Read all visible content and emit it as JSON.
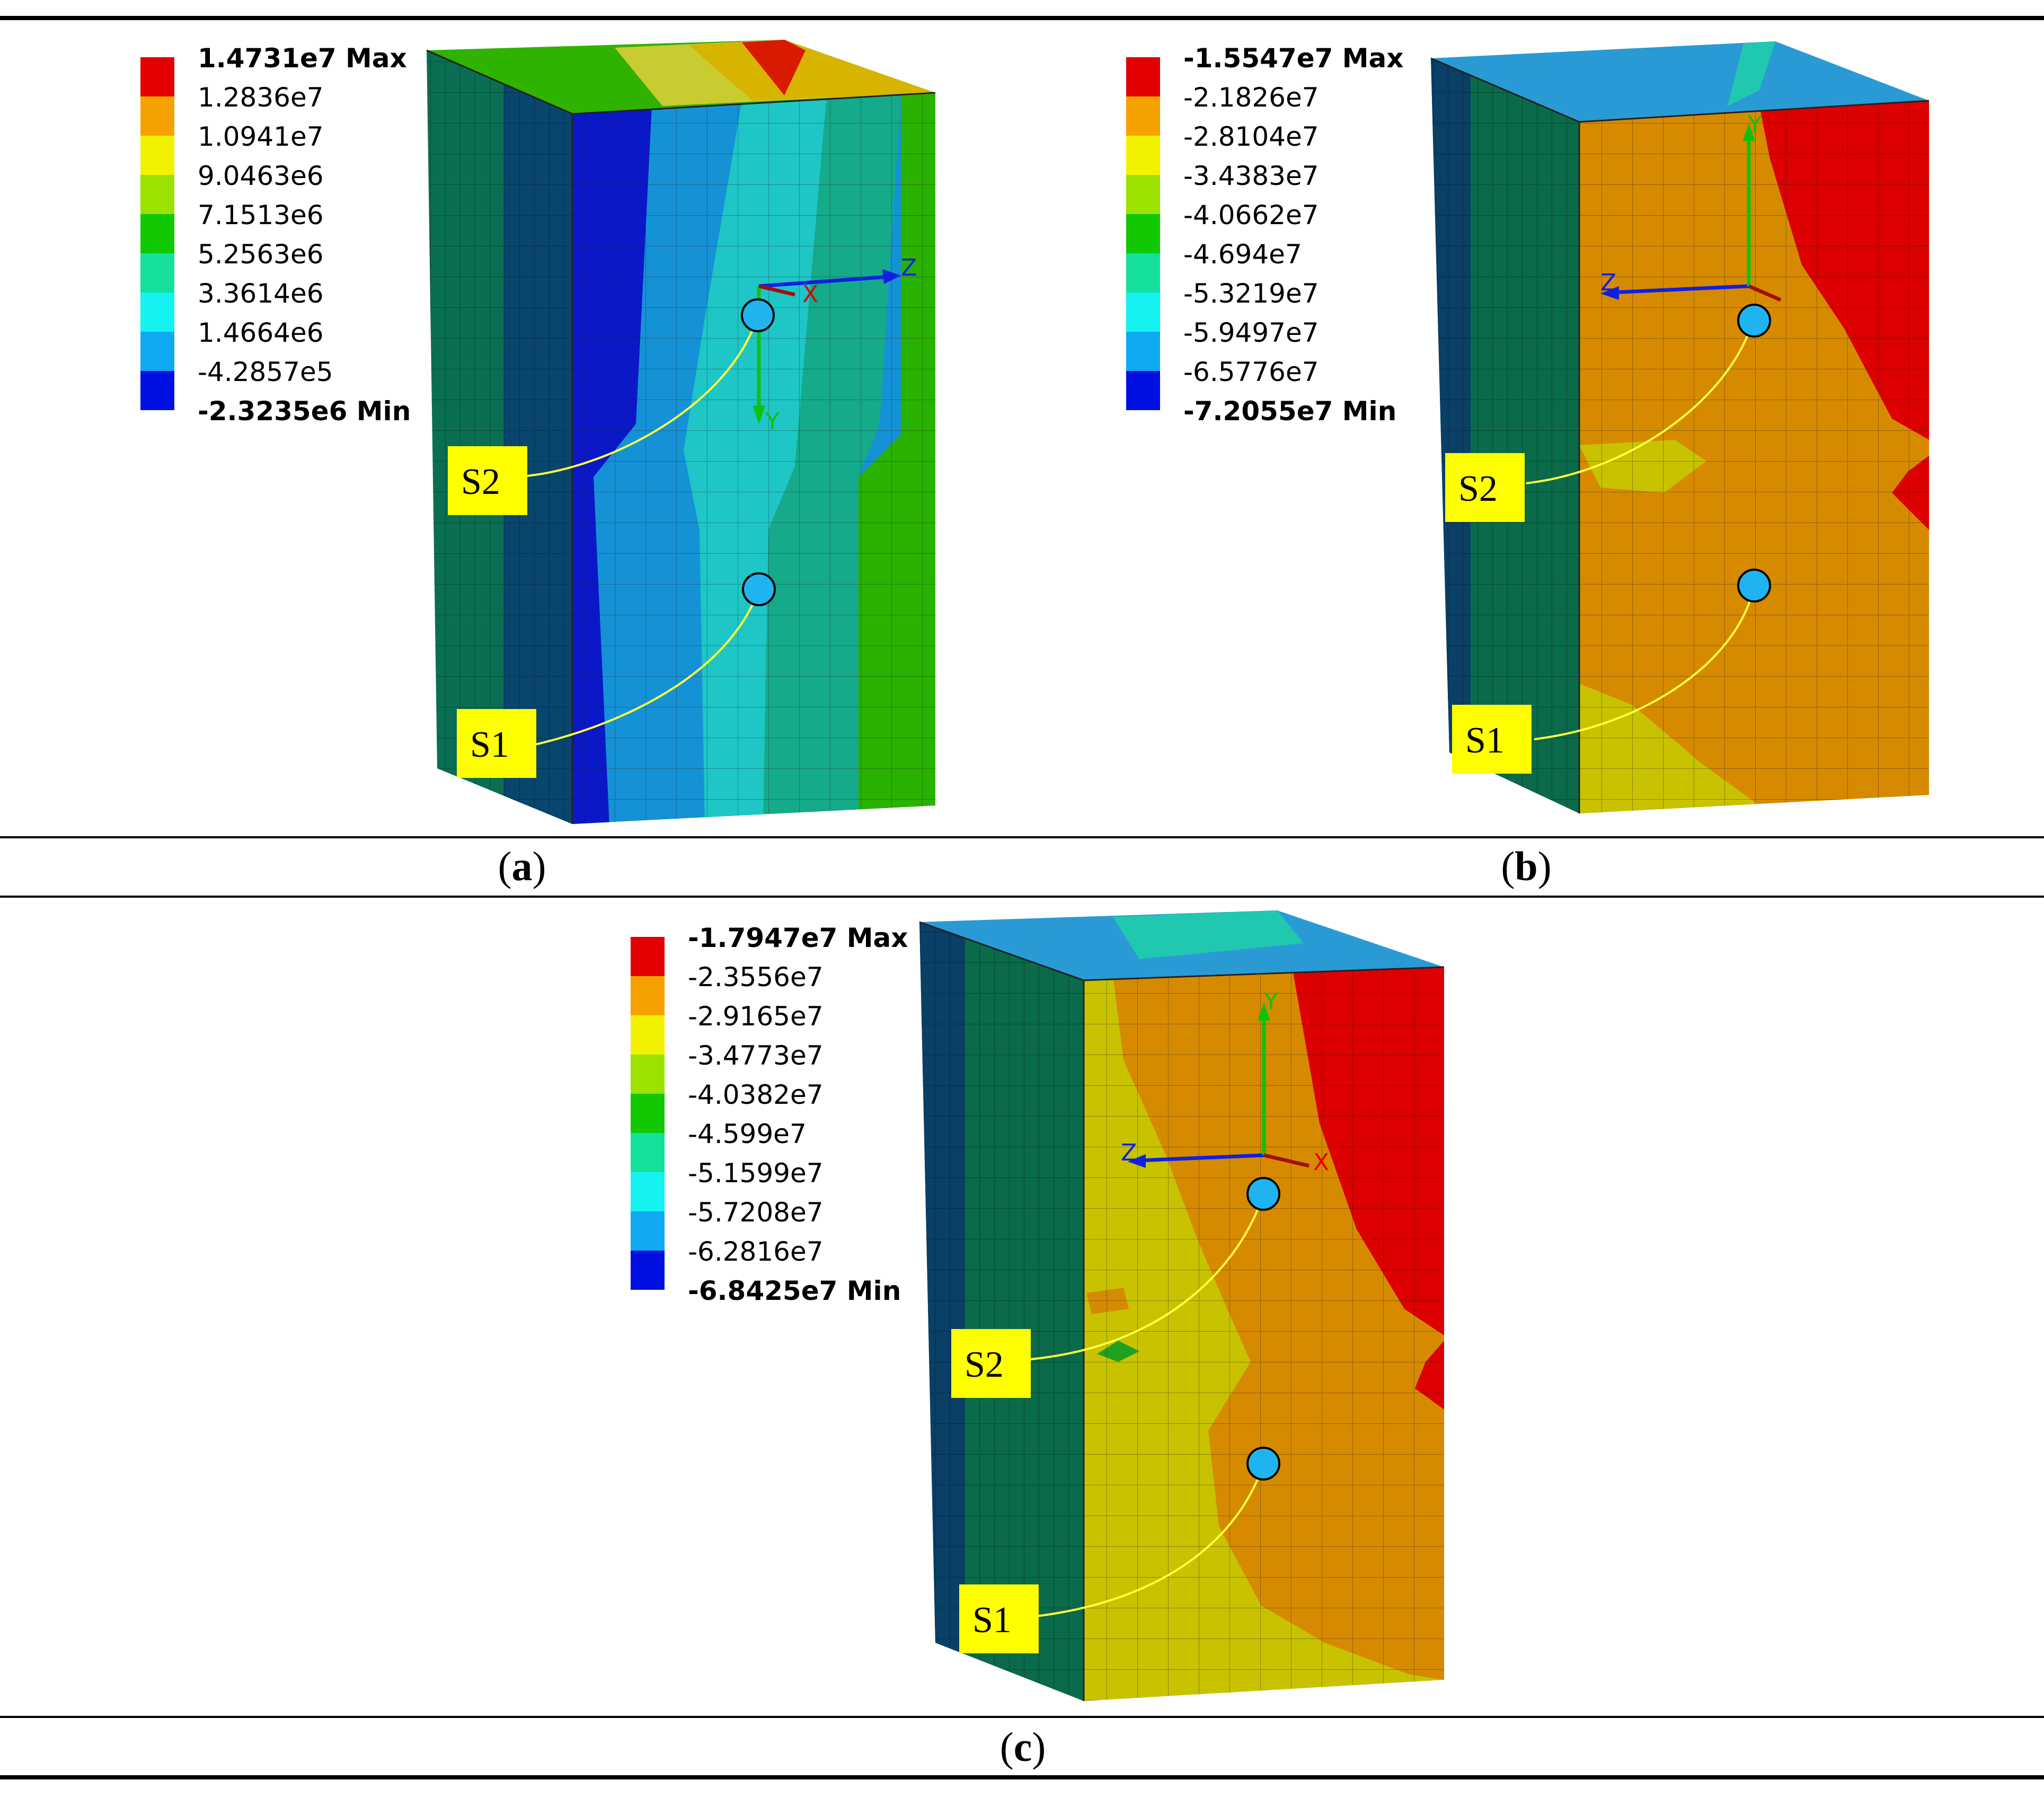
{
  "panels": [
    {
      "id": "a",
      "caption": "a",
      "legend": [
        {
          "label": "1.4731e7 Max",
          "color": "#e30000",
          "bold": true
        },
        {
          "label": "1.2836e7",
          "color": "#f5a200"
        },
        {
          "label": "1.0941e7",
          "color": "#f2f200"
        },
        {
          "label": "9.0463e6",
          "color": "#9be200"
        },
        {
          "label": "7.1513e6",
          "color": "#12c800"
        },
        {
          "label": "5.2563e6",
          "color": "#14e09c"
        },
        {
          "label": "3.3614e6",
          "color": "#14f2f2"
        },
        {
          "label": "1.4664e6",
          "color": "#10aaf2"
        },
        {
          "label": "-4.2857e5",
          "color": "#0010e2"
        },
        {
          "label": "-2.3235e6 Min",
          "color": null,
          "bold": true
        }
      ],
      "markers": [
        "S2",
        "S1"
      ],
      "axes": [
        "X",
        "Y",
        "Z"
      ]
    },
    {
      "id": "b",
      "caption": "b",
      "legend": [
        {
          "label": "-1.5547e7 Max",
          "color": "#e30000",
          "bold": true
        },
        {
          "label": "-2.1826e7",
          "color": "#f5a200"
        },
        {
          "label": "-2.8104e7",
          "color": "#f2f200"
        },
        {
          "label": "-3.4383e7",
          "color": "#9be200"
        },
        {
          "label": "-4.0662e7",
          "color": "#12c800"
        },
        {
          "label": "-4.694e7",
          "color": "#14e09c"
        },
        {
          "label": "-5.3219e7",
          "color": "#14f2f2"
        },
        {
          "label": "-5.9497e7",
          "color": "#10aaf2"
        },
        {
          "label": "-6.5776e7",
          "color": "#0010e2"
        },
        {
          "label": "-7.2055e7 Min",
          "color": null,
          "bold": true
        }
      ],
      "markers": [
        "S2",
        "S1"
      ],
      "axes": [
        "X",
        "Y",
        "Z"
      ]
    },
    {
      "id": "c",
      "caption": "c",
      "legend": [
        {
          "label": "-1.7947e7 Max",
          "color": "#e30000",
          "bold": true
        },
        {
          "label": "-2.3556e7",
          "color": "#f5a200"
        },
        {
          "label": "-2.9165e7",
          "color": "#f2f200"
        },
        {
          "label": "-3.4773e7",
          "color": "#9be200"
        },
        {
          "label": "-4.0382e7",
          "color": "#12c800"
        },
        {
          "label": "-4.599e7",
          "color": "#14e09c"
        },
        {
          "label": "-5.1599e7",
          "color": "#14f2f2"
        },
        {
          "label": "-5.7208e7",
          "color": "#10aaf2"
        },
        {
          "label": "-6.2816e7",
          "color": "#0010e2"
        },
        {
          "label": "-6.8425e7 Min",
          "color": null,
          "bold": true
        }
      ],
      "markers": [
        "S2",
        "S1"
      ],
      "axes": [
        "X",
        "Y",
        "Z"
      ]
    }
  ],
  "colors": {
    "marker_fill": "#1fb4f0",
    "label_box": "#ffff00",
    "leader_line": "#ffff40",
    "axis_x": "#e00000",
    "axis_y": "#10c010",
    "axis_z": "#1020e0"
  }
}
